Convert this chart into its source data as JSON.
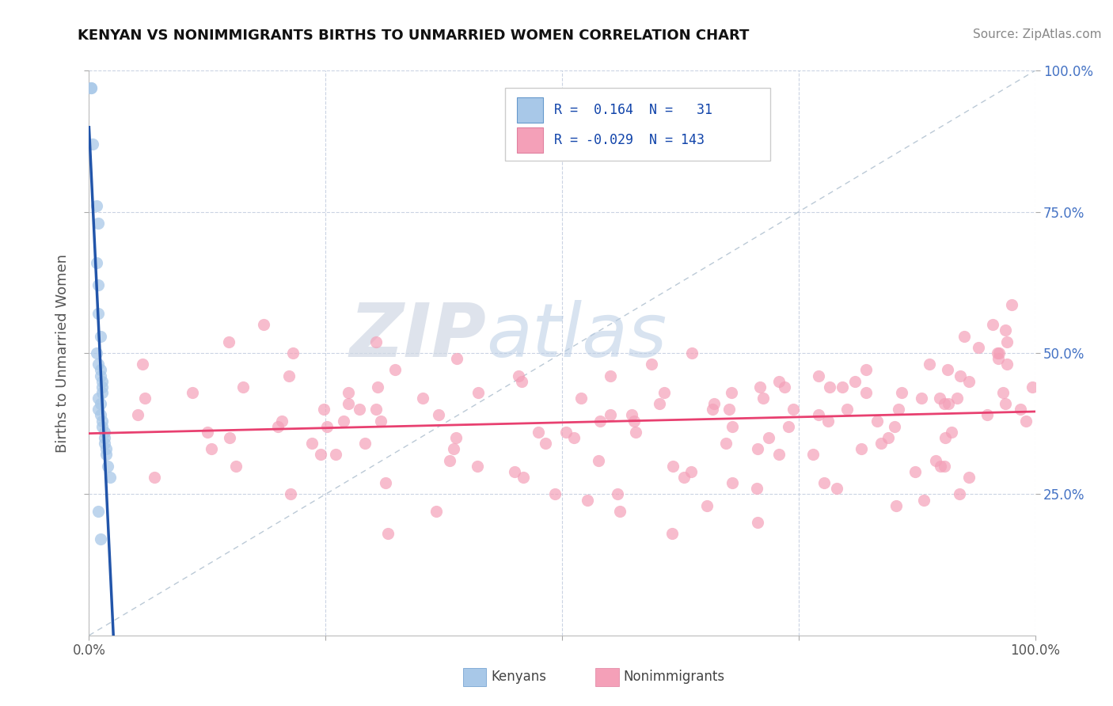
{
  "title": "KENYAN VS NONIMMIGRANTS BIRTHS TO UNMARRIED WOMEN CORRELATION CHART",
  "source": "Source: ZipAtlas.com",
  "ylabel": "Births to Unmarried Women",
  "kenyan_color": "#a8c8e8",
  "nonimmigrant_color": "#f4a0b8",
  "kenyan_line_color": "#2255aa",
  "nonimmigrant_line_color": "#e84070",
  "diagonal_color": "#aabccc",
  "watermark_zip": "ZIP",
  "watermark_atlas": "atlas",
  "legend_label1": "Kenyans",
  "legend_label2": "Nonimmigrants",
  "right_tick_color": "#4472c4",
  "title_color": "#111111",
  "source_color": "#888888",
  "ylabel_color": "#555555"
}
